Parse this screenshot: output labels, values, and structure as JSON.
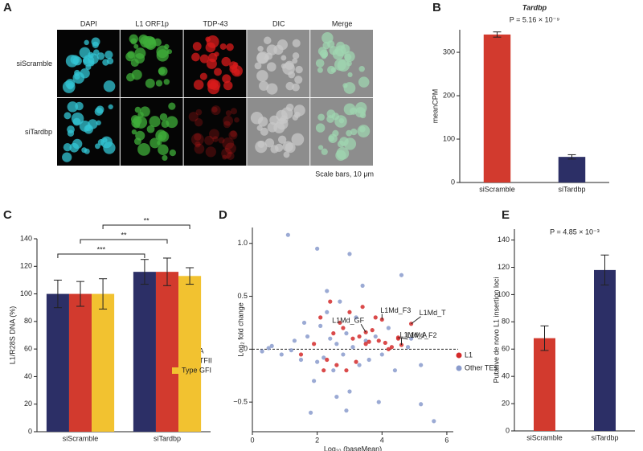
{
  "panel_labels": [
    "A",
    "B",
    "C",
    "D",
    "E"
  ],
  "panel_a": {
    "columns": [
      "DAPI",
      "L1 ORF1p",
      "TDP-43",
      "DIC",
      "Merge"
    ],
    "rows": [
      "siScramble",
      "siTardbp"
    ],
    "scale_note": "Scale bars, 10 μm"
  },
  "chart_data": [
    {
      "type": "bar",
      "title": "Tardbp",
      "subtitle": "P = 5.16 × 10⁻⁹",
      "ylabel": "meanCPM",
      "categories": [
        "siScramble",
        "siTardbp"
      ],
      "values": [
        341,
        59
      ],
      "errors": [
        6,
        5
      ],
      "colors": [
        "#d23a2e",
        "#2c2f66"
      ],
      "ylim": [
        0,
        352
      ],
      "yticks": [
        0,
        100,
        200,
        300
      ]
    },
    {
      "type": "bar",
      "ylabel": "L1/R28S DNA (%)",
      "categories": [
        "siScramble",
        "siTardbp"
      ],
      "series": [
        {
          "name": "Type A",
          "color": "#2c2f66",
          "values": [
            100,
            116
          ],
          "errors": [
            10,
            9
          ]
        },
        {
          "name": "Type TFII",
          "color": "#d23a2e",
          "values": [
            100,
            116
          ],
          "errors": [
            9,
            10
          ]
        },
        {
          "name": "Type GFI",
          "color": "#f2c230",
          "values": [
            100,
            113
          ],
          "errors": [
            11,
            6
          ]
        }
      ],
      "significance": [
        "***",
        "**",
        "**"
      ],
      "ylim": [
        0,
        140
      ],
      "yticks": [
        0,
        20,
        40,
        60,
        80,
        100,
        120,
        140
      ]
    },
    {
      "type": "scatter",
      "xlabel": "Log₁₀ (baseMean)",
      "ylabel": "Log₂ fold change",
      "xlim": [
        0,
        6.2
      ],
      "ylim": [
        -0.78,
        1.15
      ],
      "xticks": [
        0,
        2,
        4,
        6
      ],
      "yticks": [
        {
          "value": -0.5,
          "label": "−0.5"
        },
        0,
        0.5,
        {
          "value": 1,
          "label": "1.0"
        }
      ],
      "hline": 0,
      "series": [
        {
          "name": "Other TEs",
          "color": "#8a9bcc",
          "x": [
            1.1,
            0.3,
            0.6,
            0.9,
            1.3,
            1.5,
            1.7,
            1.9,
            2.0,
            2.1,
            2.2,
            2.3,
            2.4,
            2.5,
            2.6,
            2.7,
            2.8,
            2.9,
            3.0,
            3.1,
            3.2,
            3.3,
            3.4,
            3.5,
            3.6,
            3.8,
            4.0,
            4.2,
            4.4,
            4.6,
            4.9,
            5.2,
            5.6,
            2.0,
            2.3,
            3.0,
            1.8,
            2.6,
            3.9,
            1.6,
            2.9,
            5.2,
            0.5,
            1.2,
            4.8
          ],
          "values": [
            1.08,
            -0.02,
            0.03,
            -0.05,
            0.08,
            -0.1,
            0.12,
            -0.3,
            -0.12,
            0.22,
            -0.08,
            0.35,
            0.1,
            -0.2,
            0.05,
            0.45,
            -0.05,
            0.15,
            -0.4,
            0.02,
            0.3,
            -0.15,
            0.6,
            0.08,
            -0.1,
            0.12,
            -0.05,
            0.2,
            -0.2,
            0.7,
            0.1,
            -0.52,
            -0.68,
            0.95,
            0.55,
            0.9,
            -0.6,
            -0.45,
            -0.5,
            0.25,
            -0.58,
            -0.15,
            0.01,
            -0.01,
            0.02
          ]
        },
        {
          "name": "L1",
          "color": "#d42a2a",
          "x": [
            1.9,
            2.1,
            2.3,
            2.5,
            2.7,
            2.9,
            3.1,
            3.3,
            3.5,
            3.7,
            3.9,
            4.1,
            4.3,
            4.5,
            3.0,
            2.6,
            2.2,
            3.4,
            3.8,
            4.0,
            4.9,
            3.5,
            4.5,
            4.6,
            2.4,
            2.8,
            3.2,
            1.5,
            4.2,
            3.6
          ],
          "values": [
            0.05,
            0.3,
            -0.1,
            0.15,
            0.25,
            -0.2,
            0.1,
            0.12,
            0.05,
            0.18,
            0.08,
            0.06,
            0.02,
            0.1,
            0.35,
            -0.15,
            -0.2,
            0.4,
            0.3,
            0.28,
            0.24,
            0.16,
            0.11,
            0.04,
            0.45,
            0.2,
            -0.12,
            -0.05,
            0.0,
            0.07
          ]
        }
      ],
      "annotations": [
        {
          "text": "L1Md_F3",
          "x": 4.0,
          "y": 0.28
        },
        {
          "text": "L1Md_T",
          "x": 4.9,
          "y": 0.24
        },
        {
          "text": "L1Md_GF",
          "x": 3.5,
          "y": 0.16
        },
        {
          "text": "L1Md_F2",
          "x": 4.5,
          "y": 0.11
        },
        {
          "text": "L1Md_A",
          "x": 4.6,
          "y": 0.04
        }
      ]
    },
    {
      "type": "bar",
      "subtitle": "P = 4.85 × 10⁻³",
      "ylabel": "Putative de novo L1 insertion loci",
      "categories": [
        "siScramble",
        "siTardbp"
      ],
      "values": [
        68,
        118
      ],
      "errors": [
        9,
        11
      ],
      "colors": [
        "#d23a2e",
        "#2c2f66"
      ],
      "ylim": [
        0,
        148
      ],
      "yticks": [
        0,
        20,
        40,
        60,
        80,
        100,
        120,
        140
      ]
    }
  ]
}
